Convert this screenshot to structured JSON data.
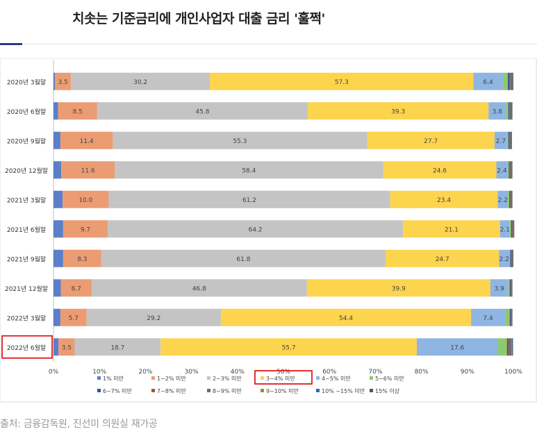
{
  "headline": "치솟는 기준금리에 개인사업자 대출 금리 '훌쩍'",
  "caption": "출처: 금융감독원, 진선미 의원실 재가공",
  "chart_data": {
    "type": "bar",
    "orientation": "horizontal",
    "stacked": true,
    "title": "",
    "xlabel": "",
    "ylabel": "",
    "xlim": [
      0,
      100
    ],
    "x_ticks": [
      "0%",
      "10%",
      "20%",
      "30%",
      "40%",
      "50%",
      "60%",
      "70%",
      "80%",
      "90%",
      "100%"
    ],
    "categories": [
      "2020년 3월말",
      "2020년 6월말",
      "2020년 9월말",
      "2020년 12월말",
      "2021년 3월말",
      "2021년 6월말",
      "2021년 9월말",
      "2021년 12월말",
      "2022년 3월말",
      "2022년 6월말"
    ],
    "highlighted_category": "2022년 6월말",
    "highlighted_series": "3~4% 미만",
    "series": [
      {
        "name": "1% 미만",
        "color": "#5b7fc8",
        "values": [
          0.3,
          1.0,
          1.5,
          1.7,
          2.0,
          2.1,
          2.1,
          1.6,
          1.5,
          1.1
        ]
      },
      {
        "name": "1~2% 미만",
        "color": "#ec9c73",
        "values": [
          3.5,
          8.5,
          11.4,
          11.6,
          10.0,
          9.7,
          8.3,
          6.7,
          5.7,
          3.5
        ]
      },
      {
        "name": "2~3% 미만",
        "color": "#c4c4c4",
        "values": [
          30.2,
          45.8,
          55.3,
          58.4,
          61.2,
          64.2,
          61.8,
          46.8,
          29.2,
          18.7
        ]
      },
      {
        "name": "3~4% 미만",
        "color": "#fdd44d",
        "values": [
          57.3,
          39.3,
          27.7,
          24.6,
          23.4,
          21.1,
          24.7,
          39.9,
          54.4,
          55.7
        ]
      },
      {
        "name": "4~5% 미만",
        "color": "#8fb5e3",
        "values": [
          6.4,
          3.8,
          2.7,
          2.4,
          2.2,
          2.1,
          2.2,
          3.9,
          7.4,
          17.6
        ]
      },
      {
        "name": "5~6% 미만",
        "color": "#8dc96e",
        "values": [
          1.1,
          0.5,
          0.3,
          0.3,
          0.3,
          0.3,
          0.2,
          0.3,
          1.0,
          2.0
        ]
      },
      {
        "name": "6~7% 미만",
        "color": "#34529e",
        "values": [
          0.3,
          0.2,
          0.2,
          0.2,
          0.2,
          0.2,
          0.2,
          0.2,
          0.2,
          0.3
        ]
      },
      {
        "name": "7~8% 미만",
        "color": "#9e5a38",
        "values": [
          0.2,
          0.1,
          0.1,
          0.1,
          0.1,
          0.1,
          0.1,
          0.1,
          0.1,
          0.2
        ]
      },
      {
        "name": "8~9% 미만",
        "color": "#6e6e6e",
        "values": [
          0.7,
          0.6,
          0.5,
          0.5,
          0.4,
          0.4,
          0.4,
          0.3,
          0.3,
          0.5
        ]
      },
      {
        "name": "9~10% 미만",
        "color": "#a88a2c",
        "values": [
          0.0,
          0.0,
          0.0,
          0.0,
          0.0,
          0.0,
          0.0,
          0.0,
          0.0,
          0.1
        ]
      },
      {
        "name": "10% ~15% 미만",
        "color": "#2e6da4",
        "values": [
          0.0,
          0.0,
          0.0,
          0.0,
          0.0,
          0.0,
          0.0,
          0.0,
          0.0,
          0.1
        ]
      },
      {
        "name": "15% 이상",
        "color": "#555555",
        "values": [
          0.0,
          0.0,
          0.0,
          0.0,
          0.0,
          0.0,
          0.0,
          0.0,
          0.0,
          0.1
        ]
      }
    ],
    "data_labels_for_series": [
      "1~2% 미만",
      "2~3% 미만",
      "3~4% 미만",
      "4~5% 미만"
    ],
    "legend": {
      "position": "bottom",
      "rows": [
        [
          "1% 미만",
          "1~2% 미만",
          "2~3% 미만",
          "3~4% 미만",
          "4~5% 미만",
          "5~6% 미만"
        ],
        [
          "6~7% 미만",
          "7~8% 미만",
          "8~9% 미만",
          "9~10% 미만",
          "10% ~15% 미만",
          "15% 이상"
        ]
      ]
    }
  }
}
